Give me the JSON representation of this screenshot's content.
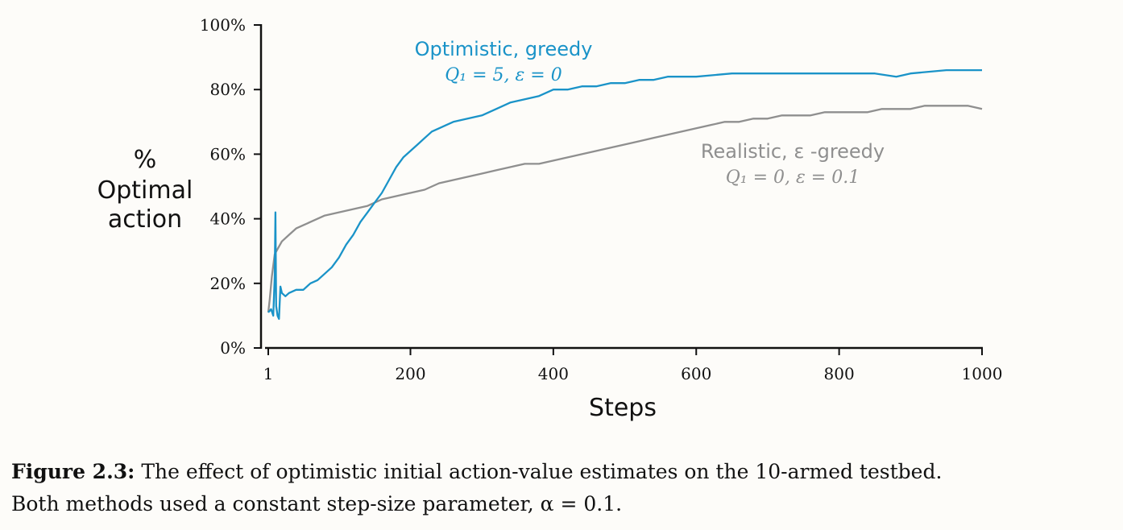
{
  "chart_data": {
    "type": "line",
    "xlabel": "Steps",
    "ylabel_lines": [
      "%",
      "Optimal",
      "action"
    ],
    "xlim": [
      1,
      1000
    ],
    "ylim": [
      0,
      100
    ],
    "x_ticks": [
      {
        "value": 1,
        "label": "1"
      },
      {
        "value": 200,
        "label": "200"
      },
      {
        "value": 400,
        "label": "400"
      },
      {
        "value": 600,
        "label": "600"
      },
      {
        "value": 800,
        "label": "800"
      },
      {
        "value": 1000,
        "label": "1000"
      }
    ],
    "y_ticks": [
      {
        "value": 0,
        "label": "0%"
      },
      {
        "value": 20,
        "label": "20%"
      },
      {
        "value": 40,
        "label": "40%"
      },
      {
        "value": 60,
        "label": "60%"
      },
      {
        "value": 80,
        "label": "80%"
      },
      {
        "value": 100,
        "label": "100%"
      }
    ],
    "grid": false,
    "series": [
      {
        "name": "Optimistic, greedy",
        "params": "Q₁ = 5,  ε = 0",
        "color": "#1a93c8",
        "points": [
          [
            1,
            11
          ],
          [
            5,
            12
          ],
          [
            8,
            10
          ],
          [
            10,
            22
          ],
          [
            11,
            42
          ],
          [
            12,
            13
          ],
          [
            14,
            10
          ],
          [
            16,
            9
          ],
          [
            18,
            19
          ],
          [
            20,
            17
          ],
          [
            25,
            16
          ],
          [
            30,
            17
          ],
          [
            40,
            18
          ],
          [
            50,
            18
          ],
          [
            60,
            20
          ],
          [
            70,
            21
          ],
          [
            80,
            23
          ],
          [
            90,
            25
          ],
          [
            100,
            28
          ],
          [
            110,
            32
          ],
          [
            120,
            35
          ],
          [
            130,
            39
          ],
          [
            140,
            42
          ],
          [
            150,
            45
          ],
          [
            160,
            48
          ],
          [
            170,
            52
          ],
          [
            180,
            56
          ],
          [
            190,
            59
          ],
          [
            200,
            61
          ],
          [
            210,
            63
          ],
          [
            220,
            65
          ],
          [
            230,
            67
          ],
          [
            240,
            68
          ],
          [
            250,
            69
          ],
          [
            260,
            70
          ],
          [
            280,
            71
          ],
          [
            300,
            72
          ],
          [
            320,
            74
          ],
          [
            340,
            76
          ],
          [
            360,
            77
          ],
          [
            380,
            78
          ],
          [
            400,
            80
          ],
          [
            420,
            80
          ],
          [
            440,
            81
          ],
          [
            460,
            81
          ],
          [
            480,
            82
          ],
          [
            500,
            82
          ],
          [
            520,
            83
          ],
          [
            540,
            83
          ],
          [
            560,
            84
          ],
          [
            580,
            84
          ],
          [
            600,
            84
          ],
          [
            650,
            85
          ],
          [
            700,
            85
          ],
          [
            750,
            85
          ],
          [
            800,
            85
          ],
          [
            850,
            85
          ],
          [
            880,
            84
          ],
          [
            900,
            85
          ],
          [
            950,
            86
          ],
          [
            1000,
            86
          ]
        ]
      },
      {
        "name": "Realistic, ε -greedy",
        "params": "Q₁ = 0,  ε = 0.1",
        "color": "#8f8f8f",
        "points": [
          [
            1,
            11
          ],
          [
            3,
            15
          ],
          [
            6,
            22
          ],
          [
            10,
            29
          ],
          [
            15,
            31
          ],
          [
            20,
            33
          ],
          [
            30,
            35
          ],
          [
            40,
            37
          ],
          [
            50,
            38
          ],
          [
            60,
            39
          ],
          [
            80,
            41
          ],
          [
            100,
            42
          ],
          [
            120,
            43
          ],
          [
            140,
            44
          ],
          [
            160,
            46
          ],
          [
            180,
            47
          ],
          [
            200,
            48
          ],
          [
            220,
            49
          ],
          [
            240,
            51
          ],
          [
            260,
            52
          ],
          [
            280,
            53
          ],
          [
            300,
            54
          ],
          [
            320,
            55
          ],
          [
            340,
            56
          ],
          [
            360,
            57
          ],
          [
            380,
            57
          ],
          [
            400,
            58
          ],
          [
            420,
            59
          ],
          [
            440,
            60
          ],
          [
            460,
            61
          ],
          [
            480,
            62
          ],
          [
            500,
            63
          ],
          [
            520,
            64
          ],
          [
            540,
            65
          ],
          [
            560,
            66
          ],
          [
            580,
            67
          ],
          [
            600,
            68
          ],
          [
            620,
            69
          ],
          [
            640,
            70
          ],
          [
            660,
            70
          ],
          [
            680,
            71
          ],
          [
            700,
            71
          ],
          [
            720,
            72
          ],
          [
            740,
            72
          ],
          [
            760,
            72
          ],
          [
            780,
            73
          ],
          [
            800,
            73
          ],
          [
            820,
            73
          ],
          [
            840,
            73
          ],
          [
            860,
            74
          ],
          [
            880,
            74
          ],
          [
            900,
            74
          ],
          [
            920,
            75
          ],
          [
            940,
            75
          ],
          [
            960,
            75
          ],
          [
            980,
            75
          ],
          [
            1000,
            74
          ]
        ]
      }
    ]
  },
  "caption": {
    "label": "Figure 2.3:",
    "line1": "The effect of optimistic initial action-value estimates on the 10-armed testbed.",
    "line2": "Both methods used a constant step-size parameter, α = 0.1."
  }
}
